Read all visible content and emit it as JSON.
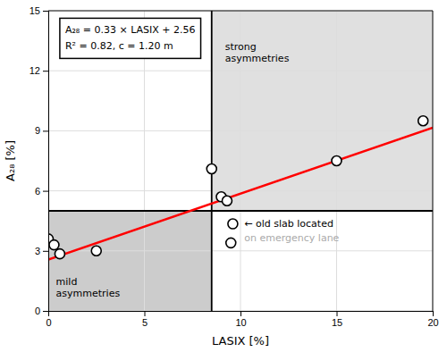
{
  "chart_data": {
    "type": "scatter",
    "xlabel": "LASIX [%]",
    "ylabel": "A₂₈ [%]",
    "xlim": [
      0,
      20
    ],
    "ylim": [
      0,
      15
    ],
    "xticks": [
      0,
      5,
      10,
      15,
      20
    ],
    "yticks": [
      0,
      3,
      6,
      9,
      12,
      15
    ],
    "grid": true,
    "series": [
      {
        "type": "scatter",
        "marker": "circle",
        "color": "#000000",
        "x": [
          0.0,
          0.3,
          0.6,
          2.5,
          8.5,
          9.0,
          9.3,
          9.5,
          15.0,
          19.5
        ],
        "values": [
          3.6,
          3.3,
          2.85,
          3.0,
          7.1,
          5.7,
          5.5,
          3.4,
          7.5,
          9.5
        ]
      },
      {
        "type": "line",
        "color": "#ff0000",
        "line_style": "solid",
        "x": [
          0,
          20
        ],
        "values": [
          2.56,
          9.16
        ]
      }
    ],
    "threshold_x": 8.5,
    "threshold_y": 5.0,
    "regions": [
      {
        "label": "mild\nasymmetries",
        "x": 0.4,
        "y": 0.6,
        "color": "#cccccc"
      },
      {
        "label": "strong\nasymmetries",
        "x": 9.2,
        "y": 13.5,
        "color": "#e0e0e0"
      }
    ],
    "annotations": [
      {
        "x": 9.6,
        "y": 4.35,
        "marker": "circle"
      },
      {
        "text": "← old slab located",
        "x": 10.2,
        "y": 4.35,
        "color": "#000000"
      },
      {
        "text": "on emergency lane",
        "x": 10.2,
        "y": 3.6,
        "color": "#aaaaaa"
      }
    ],
    "equation": [
      "A₂₈ = 0.33 × LASIX + 2.56",
      "R² = 0.82,  c = 1.20 m"
    ]
  }
}
